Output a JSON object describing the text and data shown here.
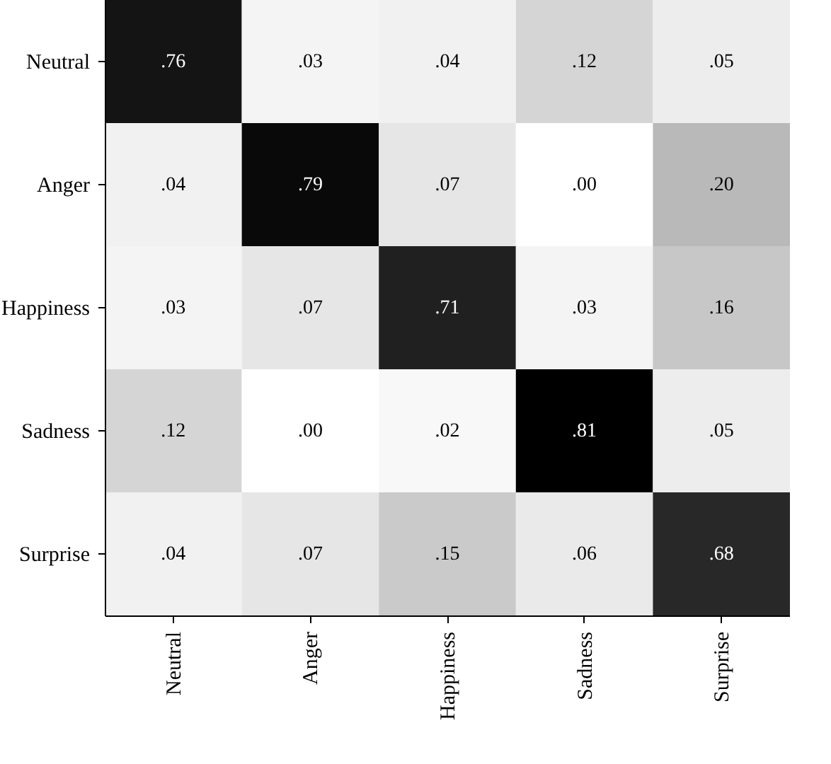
{
  "chart_data": {
    "type": "heatmap",
    "categories": [
      "Neutral",
      "Anger",
      "Happiness",
      "Sadness",
      "Surprise"
    ],
    "y_categories": [
      "Neutral",
      "Anger",
      "Happiness",
      "Sadness",
      "Surprise"
    ],
    "cells": [
      [
        0.76,
        0.03,
        0.04,
        0.12,
        0.05
      ],
      [
        0.04,
        0.79,
        0.07,
        0.0,
        0.2
      ],
      [
        0.03,
        0.07,
        0.71,
        0.03,
        0.16
      ],
      [
        0.12,
        0.0,
        0.02,
        0.81,
        0.05
      ],
      [
        0.04,
        0.07,
        0.15,
        0.06,
        0.68
      ]
    ],
    "cell_labels": [
      [
        ".76",
        ".03",
        ".04",
        ".12",
        ".05"
      ],
      [
        ".04",
        ".79",
        ".07",
        ".00",
        ".20"
      ],
      [
        ".03",
        ".07",
        ".71",
        ".03",
        ".16"
      ],
      [
        ".12",
        ".00",
        ".02",
        ".81",
        ".05"
      ],
      [
        ".04",
        ".07",
        ".15",
        ".06",
        ".68"
      ]
    ]
  }
}
